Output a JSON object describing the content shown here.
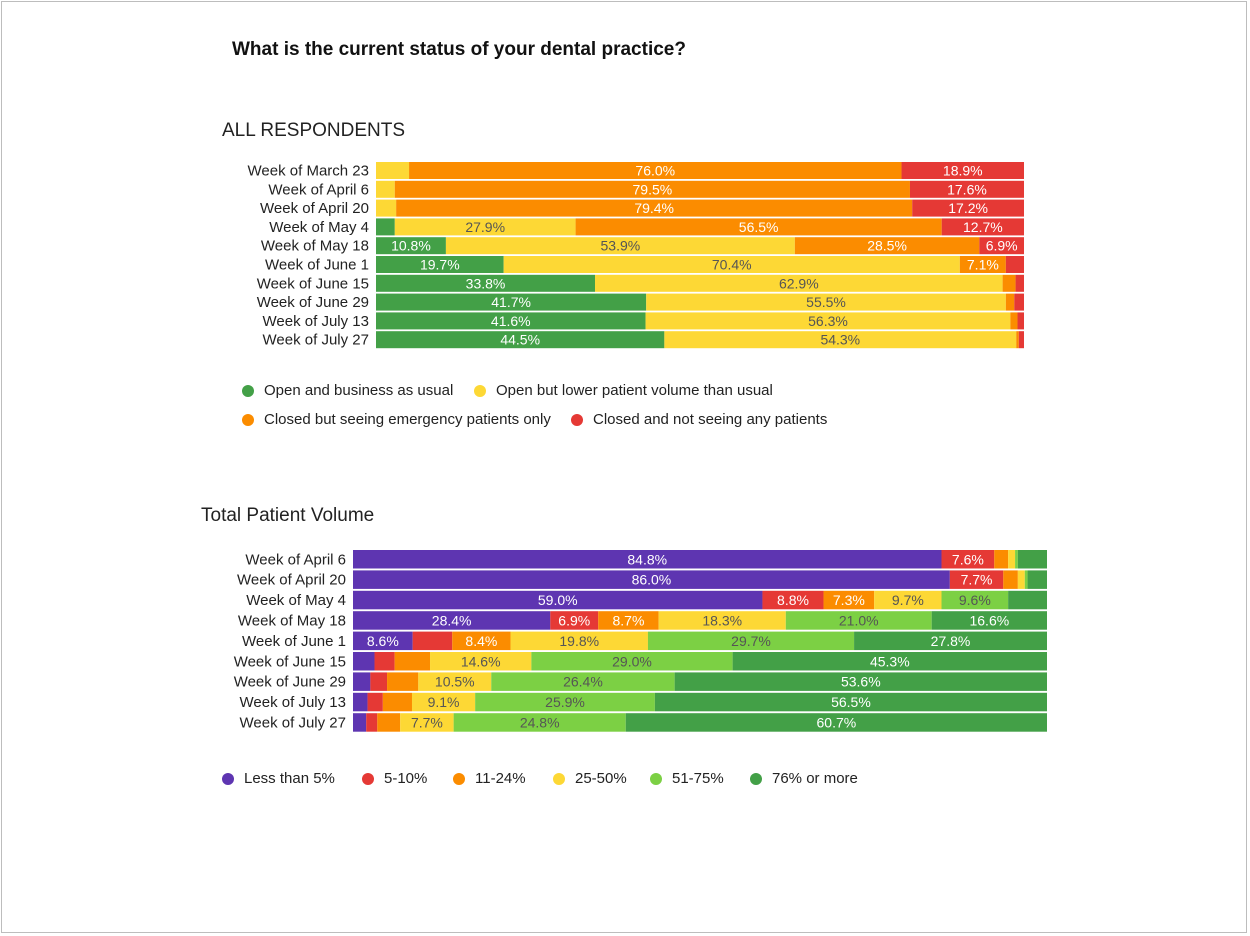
{
  "page": {
    "title": "What is the current status of your dental practice?"
  },
  "chart_data": [
    {
      "type": "bar",
      "orientation": "horizontal",
      "stacked": true,
      "normalized": true,
      "title": "ALL RESPONDENTS",
      "categories": [
        "Week of March 23",
        "Week of April 6",
        "Week of April 20",
        "Week of May 4",
        "Week of May 18",
        "Week of June 1",
        "Week of June 15",
        "Week of June 29",
        "Week of July 13",
        "Week of July 27"
      ],
      "series": [
        {
          "name": "Open and business as usual",
          "color": "#43a047",
          "values": [
            0,
            0,
            0,
            2.9,
            10.8,
            19.7,
            33.8,
            41.7,
            41.6,
            44.5
          ]
        },
        {
          "name": "Open but lower patient volume than usual",
          "color": "#fdd835",
          "values": [
            5.1,
            2.9,
            3.1,
            27.9,
            53.9,
            70.4,
            62.9,
            55.5,
            56.3,
            54.3
          ]
        },
        {
          "name": "Closed but seeing emergency patients only",
          "color": "#fb8c00",
          "values": [
            76.0,
            79.5,
            79.4,
            56.5,
            28.5,
            7.1,
            2.0,
            1.3,
            1.1,
            0.4
          ]
        },
        {
          "name": "Closed and not seeing any patients",
          "color": "#e53935",
          "values": [
            18.9,
            17.6,
            17.2,
            12.7,
            6.9,
            2.8,
            1.3,
            1.5,
            1.0,
            0.8
          ]
        }
      ],
      "legend_position": "bottom"
    },
    {
      "type": "bar",
      "orientation": "horizontal",
      "stacked": true,
      "normalized": true,
      "title": "Total Patient Volume",
      "categories": [
        "Week of April 6",
        "Week of April 20",
        "Week of May 4",
        "Week of May 18",
        "Week of June 1",
        "Week of June 15",
        "Week of June 29",
        "Week of July 13",
        "Week of July 27"
      ],
      "series": [
        {
          "name": "Less than 5%",
          "color": "#5e35b1",
          "values": [
            84.8,
            86.0,
            59.0,
            28.4,
            8.6,
            3.1,
            2.5,
            2.1,
            1.9
          ]
        },
        {
          "name": "5-10%",
          "color": "#e53935",
          "values": [
            7.6,
            7.7,
            8.8,
            6.9,
            5.7,
            2.9,
            2.4,
            2.2,
            1.6
          ]
        },
        {
          "name": "11-24%",
          "color": "#fb8c00",
          "values": [
            2.0,
            2.1,
            7.3,
            8.7,
            8.4,
            5.1,
            4.5,
            4.2,
            3.3
          ]
        },
        {
          "name": "25-50%",
          "color": "#fdd835",
          "values": [
            1.0,
            1.0,
            9.7,
            18.3,
            19.8,
            14.6,
            10.5,
            9.1,
            7.7
          ]
        },
        {
          "name": "51-75%",
          "color": "#7cd044",
          "values": [
            0.4,
            0.4,
            9.6,
            21.0,
            29.7,
            29.0,
            26.4,
            25.9,
            24.8
          ]
        },
        {
          "name": "76% or more",
          "color": "#43a047",
          "values": [
            4.2,
            2.8,
            5.6,
            16.6,
            27.8,
            45.3,
            53.6,
            56.5,
            60.7
          ]
        }
      ],
      "legend_position": "bottom"
    }
  ]
}
